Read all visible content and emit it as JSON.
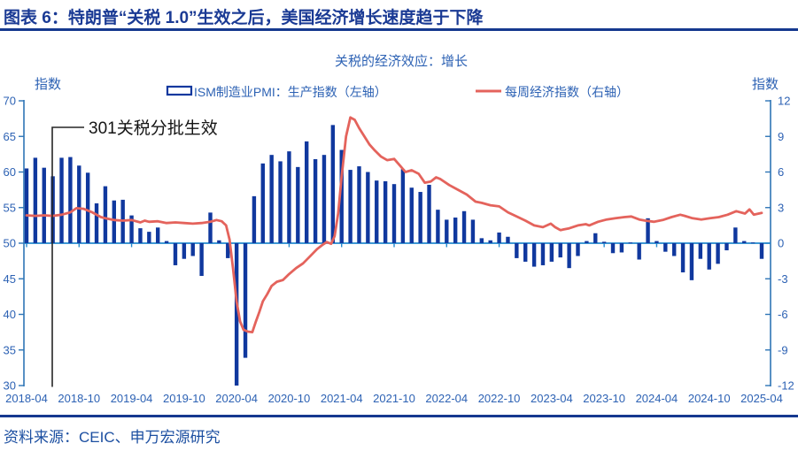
{
  "header": {
    "title": "图表 6：特朗普“关税 1.0”生效之后，美国经济增长速度趋于下降"
  },
  "footer": {
    "source": "资料来源：CEIC、申万宏源研究"
  },
  "chart_data": {
    "type": "bar+line combo",
    "title": "关税的经济效应：增长",
    "left_axis": {
      "label": "指数",
      "min": 30,
      "max": 70,
      "step": 5
    },
    "right_axis": {
      "label": "指数",
      "min": -12,
      "max": 12,
      "step": 3
    },
    "x_tick_labels": [
      "2018-04",
      "2018-10",
      "2019-04",
      "2019-10",
      "2020-04",
      "2020-10",
      "2021-04",
      "2021-10",
      "2022-04",
      "2022-10",
      "2023-04",
      "2023-10",
      "2024-04",
      "2024-10",
      "2025-04"
    ],
    "annotation": {
      "text": "301关税分批生效",
      "at": "2018-07"
    },
    "legend_position": "top",
    "grid": false,
    "series": [
      {
        "name": "ISM制造业PMI：生产指数（左轴）",
        "type": "bar",
        "axis": "left",
        "baseline": 50,
        "start": "2018-04",
        "freq": "monthly",
        "values": [
          60.5,
          62.0,
          60.6,
          59.4,
          62.0,
          62.1,
          60.9,
          59.9,
          55.6,
          58.0,
          56.0,
          56.1,
          53.9,
          52.1,
          51.6,
          52.2,
          50.3,
          46.9,
          47.8,
          48.2,
          45.4,
          54.3,
          50.4,
          47.9,
          30.0,
          33.9,
          56.6,
          61.2,
          62.4,
          61.5,
          62.9,
          60.7,
          64.3,
          61.8,
          62.4,
          66.6,
          63.1,
          60.3,
          60.8,
          60.0,
          58.8,
          58.7,
          58.3,
          60.4,
          57.8,
          57.2,
          58.2,
          54.7,
          53.3,
          53.6,
          54.5,
          53.3,
          50.7,
          50.4,
          51.5,
          50.9,
          47.9,
          47.4,
          46.7,
          46.9,
          47.4,
          48.0,
          46.5,
          48.2,
          50.3,
          51.4,
          50.2,
          48.6,
          48.7,
          50.1,
          47.7,
          53.5,
          50.3,
          48.8,
          48.2,
          45.9,
          44.8,
          47.8,
          46.3,
          47.1,
          49.0,
          52.2,
          50.3,
          50.1,
          47.8
        ]
      },
      {
        "name": "每周经济指数（右轴）",
        "type": "line",
        "axis": "right",
        "freq": "weekly (month offsets from 2018-04)",
        "points": [
          [
            0,
            2.35
          ],
          [
            1,
            2.3
          ],
          [
            2,
            2.35
          ],
          [
            3,
            2.3
          ],
          [
            4,
            2.4
          ],
          [
            5,
            2.6
          ],
          [
            5.7,
            2.95
          ],
          [
            6.5,
            2.9
          ],
          [
            7.5,
            2.6
          ],
          [
            8.5,
            2.2
          ],
          [
            9,
            2.1
          ],
          [
            10,
            1.95
          ],
          [
            11,
            1.9
          ],
          [
            12,
            1.95
          ],
          [
            13,
            1.75
          ],
          [
            13.5,
            1.9
          ],
          [
            14,
            1.8
          ],
          [
            15,
            1.85
          ],
          [
            16,
            1.7
          ],
          [
            17,
            1.75
          ],
          [
            18,
            1.7
          ],
          [
            19,
            1.65
          ],
          [
            20,
            1.7
          ],
          [
            21,
            1.8
          ],
          [
            21.7,
            1.95
          ],
          [
            22.3,
            1.85
          ],
          [
            22.8,
            1.5
          ],
          [
            23.2,
            0.3
          ],
          [
            23.6,
            -2.2
          ],
          [
            24,
            -4.9
          ],
          [
            24.4,
            -6.6
          ],
          [
            24.8,
            -7.3
          ],
          [
            25.3,
            -7.45
          ],
          [
            25.8,
            -7.5
          ],
          [
            26.2,
            -6.6
          ],
          [
            26.6,
            -5.8
          ],
          [
            27,
            -4.9
          ],
          [
            27.5,
            -4.3
          ],
          [
            28,
            -3.6
          ],
          [
            28.6,
            -3.25
          ],
          [
            29.3,
            -3.1
          ],
          [
            30,
            -2.6
          ],
          [
            30.8,
            -2.1
          ],
          [
            31.6,
            -1.7
          ],
          [
            32.4,
            -1.1
          ],
          [
            33.2,
            -0.5
          ],
          [
            33.8,
            -0.15
          ],
          [
            34.3,
            0.1
          ],
          [
            34.8,
            -0.05
          ],
          [
            35.2,
            0.6
          ],
          [
            35.6,
            2.5
          ],
          [
            36,
            5.6
          ],
          [
            36.5,
            9.0
          ],
          [
            37,
            10.6
          ],
          [
            37.5,
            10.4
          ],
          [
            38,
            9.7
          ],
          [
            38.6,
            9.0
          ],
          [
            39.2,
            8.3
          ],
          [
            39.8,
            7.8
          ],
          [
            40.5,
            7.3
          ],
          [
            41.2,
            7.0
          ],
          [
            42,
            7.1
          ],
          [
            42.6,
            6.6
          ],
          [
            43.3,
            6.0
          ],
          [
            44,
            6.15
          ],
          [
            44.8,
            5.85
          ],
          [
            45.5,
            5.1
          ],
          [
            46.2,
            5.2
          ],
          [
            46.8,
            5.55
          ],
          [
            47.3,
            5.4
          ],
          [
            48.3,
            4.9
          ],
          [
            49.3,
            4.5
          ],
          [
            50.3,
            4.1
          ],
          [
            51.3,
            3.5
          ],
          [
            52,
            3.4
          ],
          [
            53,
            3.2
          ],
          [
            54,
            3.1
          ],
          [
            55,
            2.6
          ],
          [
            56,
            2.25
          ],
          [
            57,
            1.9
          ],
          [
            58,
            1.5
          ],
          [
            59,
            1.35
          ],
          [
            59.9,
            1.65
          ],
          [
            60.4,
            1.35
          ],
          [
            61,
            1.1
          ],
          [
            62,
            1.25
          ],
          [
            63,
            1.5
          ],
          [
            63.9,
            1.6
          ],
          [
            64.3,
            1.5
          ],
          [
            65.3,
            1.8
          ],
          [
            66.3,
            2.0
          ],
          [
            67.3,
            2.1
          ],
          [
            68.3,
            2.2
          ],
          [
            69.1,
            2.25
          ],
          [
            70,
            2.0
          ],
          [
            70.7,
            1.9
          ],
          [
            71.7,
            1.8
          ],
          [
            72.7,
            1.95
          ],
          [
            73.7,
            2.2
          ],
          [
            74.7,
            2.4
          ],
          [
            75.2,
            2.3
          ],
          [
            76.1,
            2.1
          ],
          [
            77.1,
            2.0
          ],
          [
            78.1,
            2.1
          ],
          [
            79.1,
            2.2
          ],
          [
            80.1,
            2.4
          ],
          [
            81.1,
            2.7
          ],
          [
            82.1,
            2.5
          ],
          [
            82.6,
            2.85
          ],
          [
            83.1,
            2.4
          ],
          [
            84,
            2.55
          ]
        ]
      }
    ],
    "colors": {
      "bar_navy": "#10389E",
      "line_red": "#E4635C",
      "axis_blue": "#2E75B6",
      "baseline_blue": "#2389CE",
      "tick_text_blue": "#2D62B4",
      "title_navy": "#1A3A94",
      "rule_navy": "#15388F",
      "source_blue": "#1C4FA1",
      "annotation_black": "#141414"
    }
  }
}
